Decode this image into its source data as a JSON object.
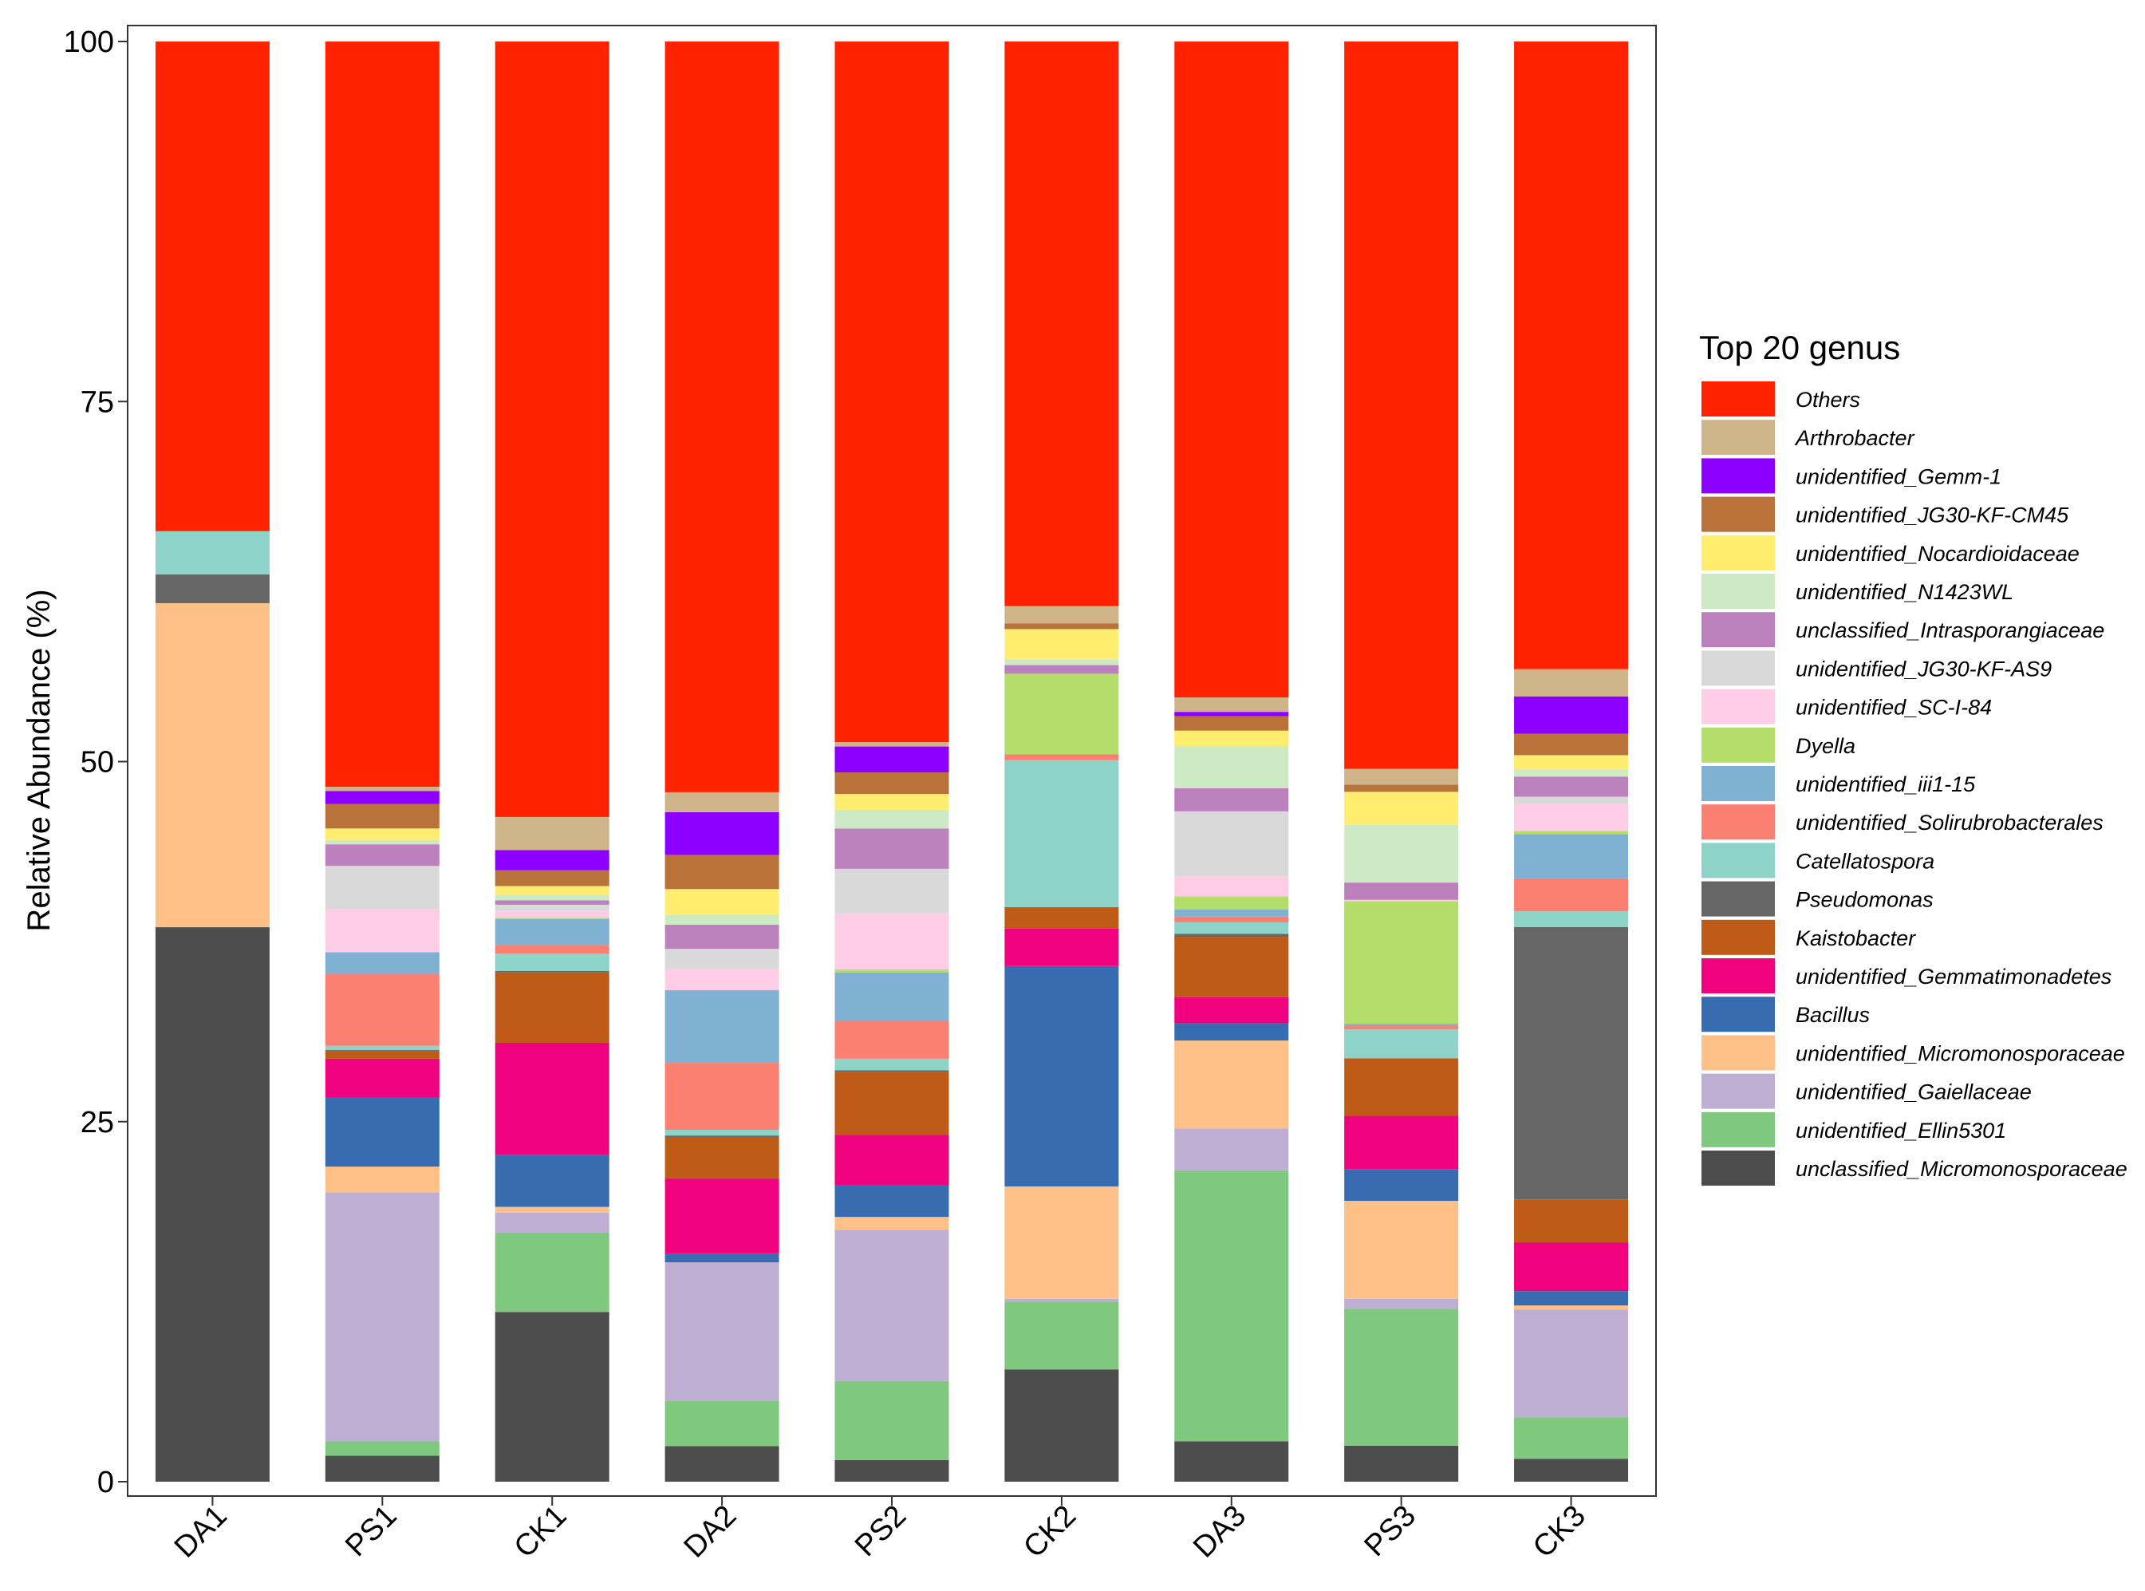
{
  "chart_data": {
    "type": "bar",
    "stacked": true,
    "ylabel": "Relative Abundance (%)",
    "xlabel": "",
    "ylim": [
      0,
      100
    ],
    "yticks": [
      0,
      25,
      50,
      75,
      100
    ],
    "grid": false,
    "legend_title": "Top 20 genus",
    "legend_position": "right",
    "categories": [
      "DA1",
      "PS1",
      "CK1",
      "DA2",
      "PS2",
      "CK2",
      "DA3",
      "PS3",
      "CK3"
    ],
    "series": [
      {
        "name": "unclassified_Micromonosporaceae",
        "color": "#4d4d4d",
        "values": [
          38.5,
          1.8,
          11.8,
          2.5,
          1.5,
          7.8,
          2.8,
          2.5,
          1.6
        ]
      },
      {
        "name": "unidentified_Ellin5301",
        "color": "#7fc97f",
        "values": [
          0.0,
          1.0,
          5.5,
          3.2,
          5.5,
          4.7,
          18.8,
          9.5,
          2.9
        ]
      },
      {
        "name": "unidentified_Gaiellaceae",
        "color": "#beaed4",
        "values": [
          0.0,
          17.3,
          1.4,
          9.7,
          10.5,
          0.2,
          2.9,
          0.7,
          7.5
        ]
      },
      {
        "name": "unidentified_Micromonosporaceae",
        "color": "#fdc086",
        "values": [
          22.5,
          1.8,
          0.4,
          0.0,
          0.9,
          7.8,
          6.1,
          6.8,
          0.3
        ]
      },
      {
        "name": "Bacillus",
        "color": "#386cb0",
        "values": [
          0.0,
          4.8,
          3.6,
          0.6,
          2.2,
          15.3,
          1.2,
          2.2,
          1.0
        ]
      },
      {
        "name": "unidentified_Gemmatimonadetes",
        "color": "#f0027f",
        "values": [
          0.0,
          2.7,
          7.8,
          5.3,
          3.5,
          2.6,
          1.8,
          3.7,
          3.4
        ]
      },
      {
        "name": "Kaistobacter",
        "color": "#bf5b17",
        "values": [
          0.0,
          0.5,
          4.9,
          2.9,
          4.4,
          1.5,
          4.2,
          4.0,
          3.0
        ]
      },
      {
        "name": "Pseudomonas",
        "color": "#666666",
        "values": [
          2.0,
          0.1,
          0.1,
          0.1,
          0.1,
          0.0,
          0.2,
          0.0,
          19.0
        ]
      },
      {
        "name": "Catellatospora",
        "color": "#8dd3c7",
        "values": [
          3.0,
          0.3,
          1.2,
          0.4,
          0.8,
          10.2,
          0.8,
          2.0,
          1.1
        ]
      },
      {
        "name": "unidentified_Solirubrobacterales",
        "color": "#fb8072",
        "values": [
          0.0,
          5.0,
          0.6,
          4.7,
          2.6,
          0.4,
          0.4,
          0.3,
          2.3
        ]
      },
      {
        "name": "unidentified_iii1-15",
        "color": "#80b1d3",
        "values": [
          0.0,
          1.5,
          1.8,
          5.1,
          3.4,
          0.0,
          0.5,
          0.1,
          3.1
        ]
      },
      {
        "name": "Dyella",
        "color": "#b3de69",
        "values": [
          0.0,
          0.0,
          0.1,
          0.0,
          0.2,
          5.6,
          0.9,
          8.5,
          0.2
        ]
      },
      {
        "name": "unidentified_SC-I-84",
        "color": "#fccde5",
        "values": [
          0.0,
          3.0,
          0.5,
          1.5,
          3.9,
          0.0,
          1.4,
          0.1,
          1.9
        ]
      },
      {
        "name": "unidentified_JG30-KF-AS9",
        "color": "#d9d9d9",
        "values": [
          0.0,
          3.0,
          0.4,
          1.4,
          3.1,
          0.0,
          4.5,
          0.0,
          0.5
        ]
      },
      {
        "name": "unclassified_Intrasporangiaceae",
        "color": "#bc80bd",
        "values": [
          0.0,
          1.5,
          0.3,
          1.7,
          2.8,
          0.6,
          1.6,
          1.2,
          1.4
        ]
      },
      {
        "name": "unidentified_N1423WL",
        "color": "#ccebc5",
        "values": [
          0.0,
          0.3,
          0.4,
          0.7,
          1.3,
          0.4,
          2.9,
          4.0,
          0.5
        ]
      },
      {
        "name": "unidentified_Nocardioidaceae",
        "color": "#ffed6f",
        "values": [
          0.0,
          0.8,
          0.6,
          1.8,
          1.1,
          2.1,
          1.1,
          2.3,
          1.0
        ]
      },
      {
        "name": "unidentified_JG30-KF-CM45",
        "color": "#b8723a",
        "values": [
          0.0,
          1.7,
          1.1,
          2.4,
          1.5,
          0.4,
          1.0,
          0.5,
          1.5
        ]
      },
      {
        "name": "unidentified_Gemm-1",
        "color": "#8b00ff",
        "values": [
          0.0,
          0.9,
          1.4,
          3.0,
          1.8,
          0.0,
          0.3,
          0.0,
          2.6
        ]
      },
      {
        "name": "Arthrobacter",
        "color": "#cfb48a",
        "values": [
          0.0,
          0.3,
          2.3,
          1.4,
          0.3,
          1.2,
          1.0,
          1.1,
          1.9
        ]
      },
      {
        "name": "Others",
        "color": "#ff2200",
        "values": [
          34.0,
          51.8,
          53.9,
          52.7,
          48.7,
          39.2,
          45.5,
          50.5,
          43.8
        ]
      }
    ]
  }
}
